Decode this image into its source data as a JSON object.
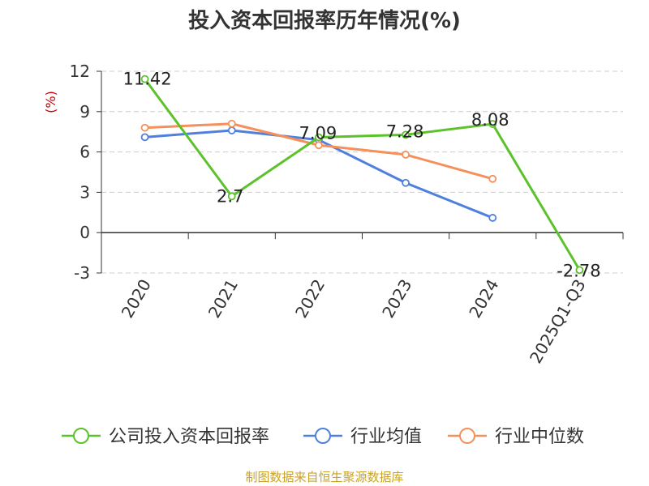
{
  "chart_data": {
    "type": "line",
    "title": "投入资本回报率历年情况(%)",
    "ylabel": "(%)",
    "categories": [
      "2020",
      "2021",
      "2022",
      "2023",
      "2024",
      "2025Q1-Q3"
    ],
    "ylim": [
      -3,
      12
    ],
    "yticks": [
      -3,
      0,
      3,
      6,
      9,
      12
    ],
    "grid": true,
    "legend_position": "bottom",
    "series": [
      {
        "name": "公司投入资本回报率",
        "color": "#5cc22b",
        "values": [
          11.42,
          2.7,
          7.09,
          7.28,
          8.08,
          -2.78
        ],
        "labels": [
          "11.42",
          "2.7",
          "7.09",
          "7.28",
          "8.08",
          "-2.78"
        ]
      },
      {
        "name": "行业均值",
        "color": "#4f80dd",
        "values": [
          7.1,
          7.6,
          6.9,
          3.7,
          1.1,
          null
        ]
      },
      {
        "name": "行业中位数",
        "color": "#f5905a",
        "values": [
          7.8,
          8.1,
          6.5,
          5.8,
          4.0,
          null
        ]
      }
    ],
    "source": "制图数据来自恒生聚源数据库"
  }
}
